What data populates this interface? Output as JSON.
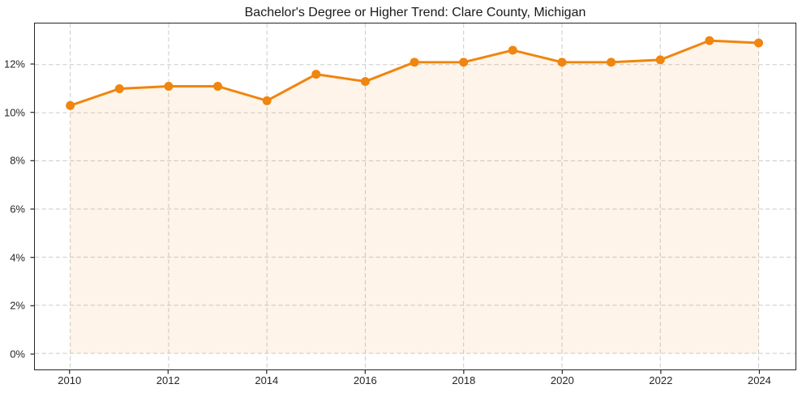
{
  "title": "Bachelor's Degree or Higher Trend: Clare County, Michigan",
  "colors": {
    "line": "#f0850f",
    "fill_rgba": "rgba(240,133,15,0.09)",
    "grid": "#cbcbcb",
    "spine": "#262626",
    "tick_text": "#262626",
    "title_text": "#1a1a1a",
    "background": "#ffffff"
  },
  "chart_data": {
    "type": "line",
    "title": "Bachelor's Degree or Higher Trend: Clare County, Michigan",
    "xlabel": "",
    "ylabel": "",
    "x": [
      2010,
      2011,
      2012,
      2013,
      2014,
      2015,
      2016,
      2017,
      2018,
      2019,
      2020,
      2021,
      2022,
      2023,
      2024
    ],
    "series": [
      {
        "name": "Bachelor's Degree or Higher (%)",
        "values": [
          10.3,
          11.0,
          11.1,
          11.1,
          10.5,
          11.6,
          11.3,
          12.1,
          12.1,
          12.6,
          12.1,
          12.1,
          12.2,
          13.0,
          12.9
        ]
      }
    ],
    "x_tick_values": [
      2010,
      2012,
      2014,
      2016,
      2018,
      2020,
      2022,
      2024
    ],
    "x_tick_labels": [
      "2010",
      "2012",
      "2014",
      "2016",
      "2018",
      "2020",
      "2022",
      "2024"
    ],
    "y_tick_values": [
      0,
      2,
      4,
      6,
      8,
      10,
      12
    ],
    "y_tick_labels": [
      "0%",
      "2%",
      "4%",
      "6%",
      "8%",
      "10%",
      "12%"
    ],
    "xlim": [
      2009.28,
      2024.75
    ],
    "ylim": [
      -0.67,
      13.71
    ],
    "grid": true,
    "grid_style": "dashed",
    "legend_position": "none",
    "marker": "circle",
    "area_fill_baseline": 0
  }
}
